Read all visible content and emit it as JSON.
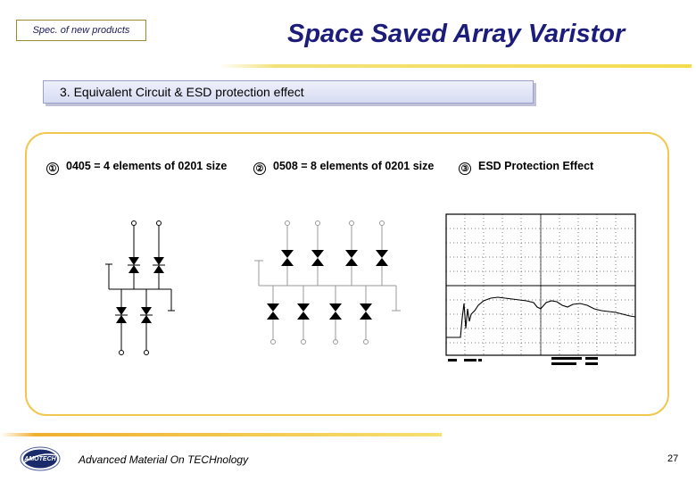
{
  "header": {
    "spec_label": "Spec. of new products",
    "title": "Space Saved Array Varistor"
  },
  "section": {
    "heading": "3. Equivalent  Circuit & ESD protection effect"
  },
  "items": [
    {
      "number": "①",
      "label": "0405 = 4 elements of 0201 size"
    },
    {
      "number": "②",
      "label": "0508 = 8 elements of 0201 size"
    },
    {
      "number": "③",
      "label": "ESD Protection Effect"
    }
  ],
  "footer": {
    "logo_text": "AMOTECH",
    "tagline": "Advanced Material On TECHnology",
    "page": "27"
  },
  "colors": {
    "title": "#1c1c7a",
    "accent_yellow": "#f0c850",
    "section_bg": "#dfe3f5"
  }
}
